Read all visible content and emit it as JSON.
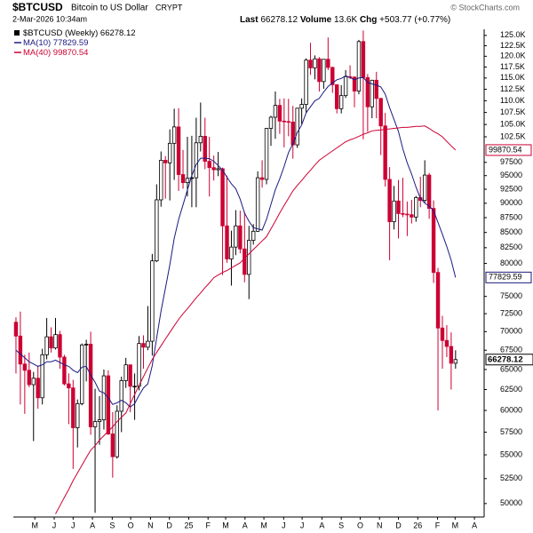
{
  "header": {
    "symbol": "$BTCUSD",
    "name": "Bitcoin to US Dollar",
    "exchange": "CRYPT",
    "date": "2-Mar-2026 10:34am",
    "last_label": "Last",
    "volume_label": "Volume",
    "volume": "13.6K",
    "change_label": "Chg",
    "change": "+503.77 (+0.77%)",
    "credit": "© StockCharts.com"
  },
  "chart_data": {
    "type": "candlestick",
    "log_y": true,
    "grid": false,
    "legend": "upper left",
    "xlim": [
      -0.6,
      106.5
    ],
    "ylim": [
      48700,
      126500
    ],
    "xticks": [
      {
        "value": 4.3,
        "label": "M"
      },
      {
        "value": 8.7,
        "label": "J"
      },
      {
        "value": 13.0,
        "label": "J"
      },
      {
        "value": 17.4,
        "label": "A"
      },
      {
        "value": 21.9,
        "label": "S"
      },
      {
        "value": 26.1,
        "label": "O"
      },
      {
        "value": 30.6,
        "label": "N"
      },
      {
        "value": 34.9,
        "label": "D"
      },
      {
        "value": 39.3,
        "label": "25"
      },
      {
        "value": 43.7,
        "label": "F"
      },
      {
        "value": 47.7,
        "label": "M"
      },
      {
        "value": 52.1,
        "label": "A"
      },
      {
        "value": 56.4,
        "label": "M"
      },
      {
        "value": 60.9,
        "label": "J"
      },
      {
        "value": 65.1,
        "label": "J"
      },
      {
        "value": 69.6,
        "label": "A"
      },
      {
        "value": 74.0,
        "label": "S"
      },
      {
        "value": 78.3,
        "label": "O"
      },
      {
        "value": 82.7,
        "label": "N"
      },
      {
        "value": 87.0,
        "label": "D"
      },
      {
        "value": 91.4,
        "label": "26"
      },
      {
        "value": 95.9,
        "label": "F"
      },
      {
        "value": 99.9,
        "label": "M"
      },
      {
        "value": 104.3,
        "label": "A"
      }
    ],
    "yticks": [
      {
        "value": 125000,
        "label": "125.0K"
      },
      {
        "value": 122500,
        "label": "122.5K"
      },
      {
        "value": 120000,
        "label": "120.0K"
      },
      {
        "value": 117500,
        "label": "117.5K"
      },
      {
        "value": 115000,
        "label": "115.0K"
      },
      {
        "value": 112500,
        "label": "112.5K"
      },
      {
        "value": 110000,
        "label": "110.0K"
      },
      {
        "value": 107500,
        "label": "107.5K"
      },
      {
        "value": 105000,
        "label": "105.0K"
      },
      {
        "value": 102500,
        "label": "102.5K"
      },
      97500,
      95000,
      92500,
      90000,
      87500,
      85000,
      82500,
      80000,
      75000,
      72500,
      70000,
      67500,
      65000,
      62500,
      60000,
      57500,
      55000,
      52500,
      50000
    ],
    "candles": {
      "name": "$BTCUSD (Weekly)",
      "up_color": "#000000",
      "down_color": "#cc0033",
      "open": [
        71300,
        69400,
        65700,
        64900,
        63100,
        63900,
        61500,
        66900,
        69300,
        67800,
        69600,
        66600,
        63200,
        62700,
        58000,
        60800,
        68200,
        68300,
        58100,
        58700,
        58900,
        64200,
        57300,
        54800,
        59900,
        63600,
        65600,
        62900,
        62900,
        68400,
        67900,
        68700,
        80400,
        90600,
        97900,
        97400,
        101200,
        104500,
        95200,
        93700,
        94500,
        94600,
        101300,
        102600,
        97700,
        96500,
        96100,
        96300,
        86100,
        80700,
        82600,
        86100,
        82300,
        78300,
        83700,
        85200,
        94600,
        94300,
        104200,
        106500,
        109000,
        105700,
        105600,
        105500,
        100900,
        108400,
        109200,
        119100,
        117300,
        119400,
        114200,
        119300,
        117400,
        113500,
        108300,
        111100,
        115300,
        115200,
        112100,
        123500,
        115100,
        108700,
        114500,
        110500,
        104700,
        94300,
        86800,
        90400,
        88200,
        88100,
        88000,
        87600,
        91000,
        90500,
        95100,
        89100,
        78600,
        70500,
        68800,
        68000,
        65800
      ],
      "high": [
        72000,
        72800,
        66900,
        67200,
        64700,
        65500,
        67700,
        71900,
        70600,
        71900,
        70100,
        66900,
        64500,
        63700,
        61300,
        68400,
        68900,
        70000,
        62600,
        61700,
        65000,
        64900,
        59800,
        60600,
        64100,
        66500,
        65600,
        64500,
        69400,
        69500,
        73600,
        81500,
        93400,
        99600,
        98700,
        104000,
        108300,
        108400,
        99900,
        102500,
        102700,
        106400,
        109600,
        106400,
        102500,
        98800,
        99500,
        96500,
        95000,
        85300,
        88800,
        88700,
        88500,
        86100,
        86400,
        95800,
        97900,
        104300,
        106800,
        112000,
        110400,
        110500,
        110400,
        108900,
        108500,
        110500,
        119500,
        123200,
        120200,
        119800,
        119300,
        124500,
        117600,
        113600,
        113400,
        116800,
        117900,
        115400,
        123900,
        126200,
        115900,
        114600,
        116400,
        110600,
        107400,
        96600,
        93100,
        94200,
        94600,
        90300,
        90600,
        91300,
        94800,
        97900,
        95500,
        90500,
        79300,
        72200,
        70900,
        69900,
        67500
      ],
      "low": [
        64500,
        60700,
        59600,
        62800,
        56500,
        60200,
        60700,
        66300,
        67200,
        67600,
        65100,
        63000,
        58400,
        53500,
        55800,
        60600,
        63500,
        57200,
        49100,
        56100,
        57800,
        57200,
        52600,
        54600,
        57500,
        62700,
        59800,
        58900,
        62400,
        65100,
        67500,
        66800,
        80200,
        89400,
        90800,
        90500,
        94200,
        92200,
        92600,
        91200,
        89300,
        89300,
        99600,
        96200,
        91200,
        94100,
        94900,
        78200,
        80100,
        76600,
        81300,
        81600,
        77100,
        74600,
        83000,
        85100,
        92800,
        93400,
        100700,
        102100,
        103100,
        100400,
        102600,
        98200,
        100300,
        105100,
        107500,
        115700,
        114700,
        112000,
        112600,
        116800,
        111700,
        107300,
        107300,
        110600,
        114800,
        108600,
        111400,
        102000,
        103500,
        106300,
        106300,
        98900,
        93000,
        80500,
        85500,
        84000,
        87600,
        84400,
        86500,
        86800,
        89300,
        90100,
        87300,
        77000,
        60000,
        65100,
        66600,
        62500,
        65100
      ],
      "close": [
        69400,
        65700,
        64900,
        63100,
        63900,
        61500,
        66900,
        69300,
        67800,
        69600,
        66600,
        63200,
        62700,
        58000,
        60800,
        68200,
        68300,
        58100,
        58700,
        58900,
        64200,
        57300,
        54800,
        59900,
        63600,
        65600,
        62900,
        62900,
        68400,
        67900,
        68700,
        80400,
        90600,
        97900,
        97400,
        101200,
        104500,
        95200,
        93700,
        94500,
        94600,
        101300,
        102600,
        97700,
        96500,
        96100,
        96300,
        86100,
        80700,
        82600,
        86100,
        82300,
        78300,
        83700,
        85200,
        94600,
        94300,
        104200,
        106500,
        109000,
        105700,
        105600,
        105500,
        100900,
        108400,
        109200,
        119100,
        117300,
        119400,
        114200,
        119300,
        117400,
        113500,
        108300,
        111100,
        115300,
        115200,
        112100,
        123500,
        115100,
        108700,
        114500,
        110500,
        104700,
        94300,
        86800,
        90400,
        88200,
        88100,
        88000,
        87600,
        91000,
        90500,
        95100,
        89100,
        78600,
        70500,
        68800,
        68000,
        65800,
        66278.12
      ]
    },
    "series": [
      {
        "name": "MA(10)",
        "color": "#1a1a80",
        "values": [
          67500,
          67000,
          66500,
          66000,
          65700,
          65400,
          65600,
          66000,
          66000,
          66200,
          65900,
          65600,
          65400,
          64900,
          64600,
          65300,
          65400,
          64300,
          63400,
          62300,
          62100,
          61500,
          60700,
          60900,
          61200,
          60900,
          60400,
          60800,
          61800,
          62700,
          63200,
          65500,
          69100,
          72900,
          76200,
          79800,
          84000,
          87200,
          89700,
          92400,
          95000,
          97100,
          98300,
          98300,
          98200,
          97700,
          96900,
          96000,
          94700,
          93500,
          92600,
          90700,
          88300,
          86900,
          85800,
          85600,
          85400,
          87200,
          89800,
          92400,
          94400,
          96700,
          99400,
          101100,
          103400,
          104900,
          107400,
          108700,
          110000,
          110500,
          111900,
          113100,
          113900,
          114600,
          114900,
          115500,
          115100,
          114600,
          115000,
          115100,
          114000,
          113700,
          113400,
          113000,
          111400,
          108500,
          106000,
          103600,
          100100,
          97400,
          95300,
          92900,
          90900,
          90000,
          89500,
          88700,
          86700,
          84700,
          82700,
          80500,
          77829.59
        ]
      },
      {
        "name": "MA(40)",
        "color": "#cc0033",
        "values": [
          null,
          null,
          null,
          null,
          null,
          null,
          null,
          null,
          null,
          49000,
          49800,
          50600,
          51400,
          52300,
          53100,
          53900,
          54700,
          55500,
          56000,
          56600,
          57100,
          57600,
          58100,
          58700,
          59200,
          59700,
          60800,
          61900,
          63000,
          64100,
          65200,
          66300,
          67200,
          68100,
          69000,
          69900,
          70800,
          71700,
          72500,
          73200,
          74000,
          74800,
          75500,
          76300,
          77000,
          77800,
          78200,
          78600,
          78900,
          79300,
          79700,
          80100,
          80800,
          81500,
          82200,
          82900,
          83600,
          84300,
          85600,
          86900,
          88300,
          89600,
          90900,
          92200,
          93200,
          94100,
          95100,
          96000,
          97000,
          97900,
          98500,
          99100,
          99700,
          100300,
          100900,
          101500,
          101900,
          102200,
          102600,
          103000,
          103300,
          103700,
          103800,
          103900,
          104000,
          104100,
          104200,
          104300,
          104400,
          104400,
          104500,
          104600,
          104600,
          104700,
          104200,
          103600,
          103100,
          102500,
          101600,
          100700,
          99870.54
        ]
      }
    ]
  }
}
